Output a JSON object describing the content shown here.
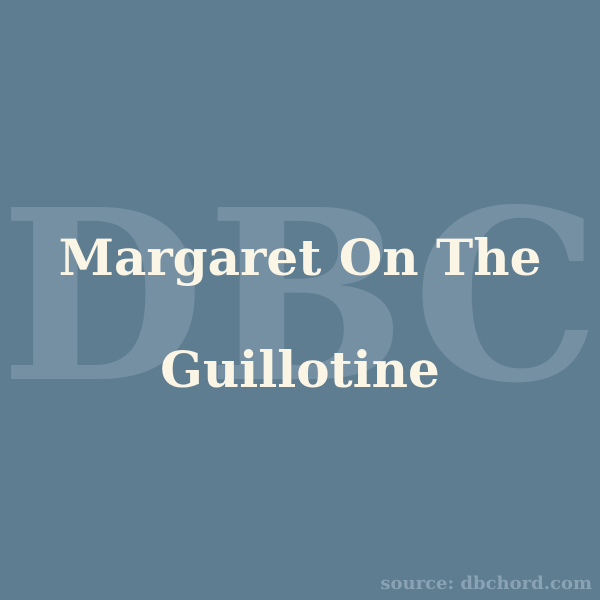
{
  "watermark": {
    "text": "DBC"
  },
  "title": {
    "text": "Margaret On The Guillotine"
  },
  "source": {
    "text": "source: dbchord.com"
  },
  "colors": {
    "background": "#5f7d90",
    "watermark": "#7590a3",
    "title": "#fbf5e6",
    "source": "#8aa3b4"
  }
}
